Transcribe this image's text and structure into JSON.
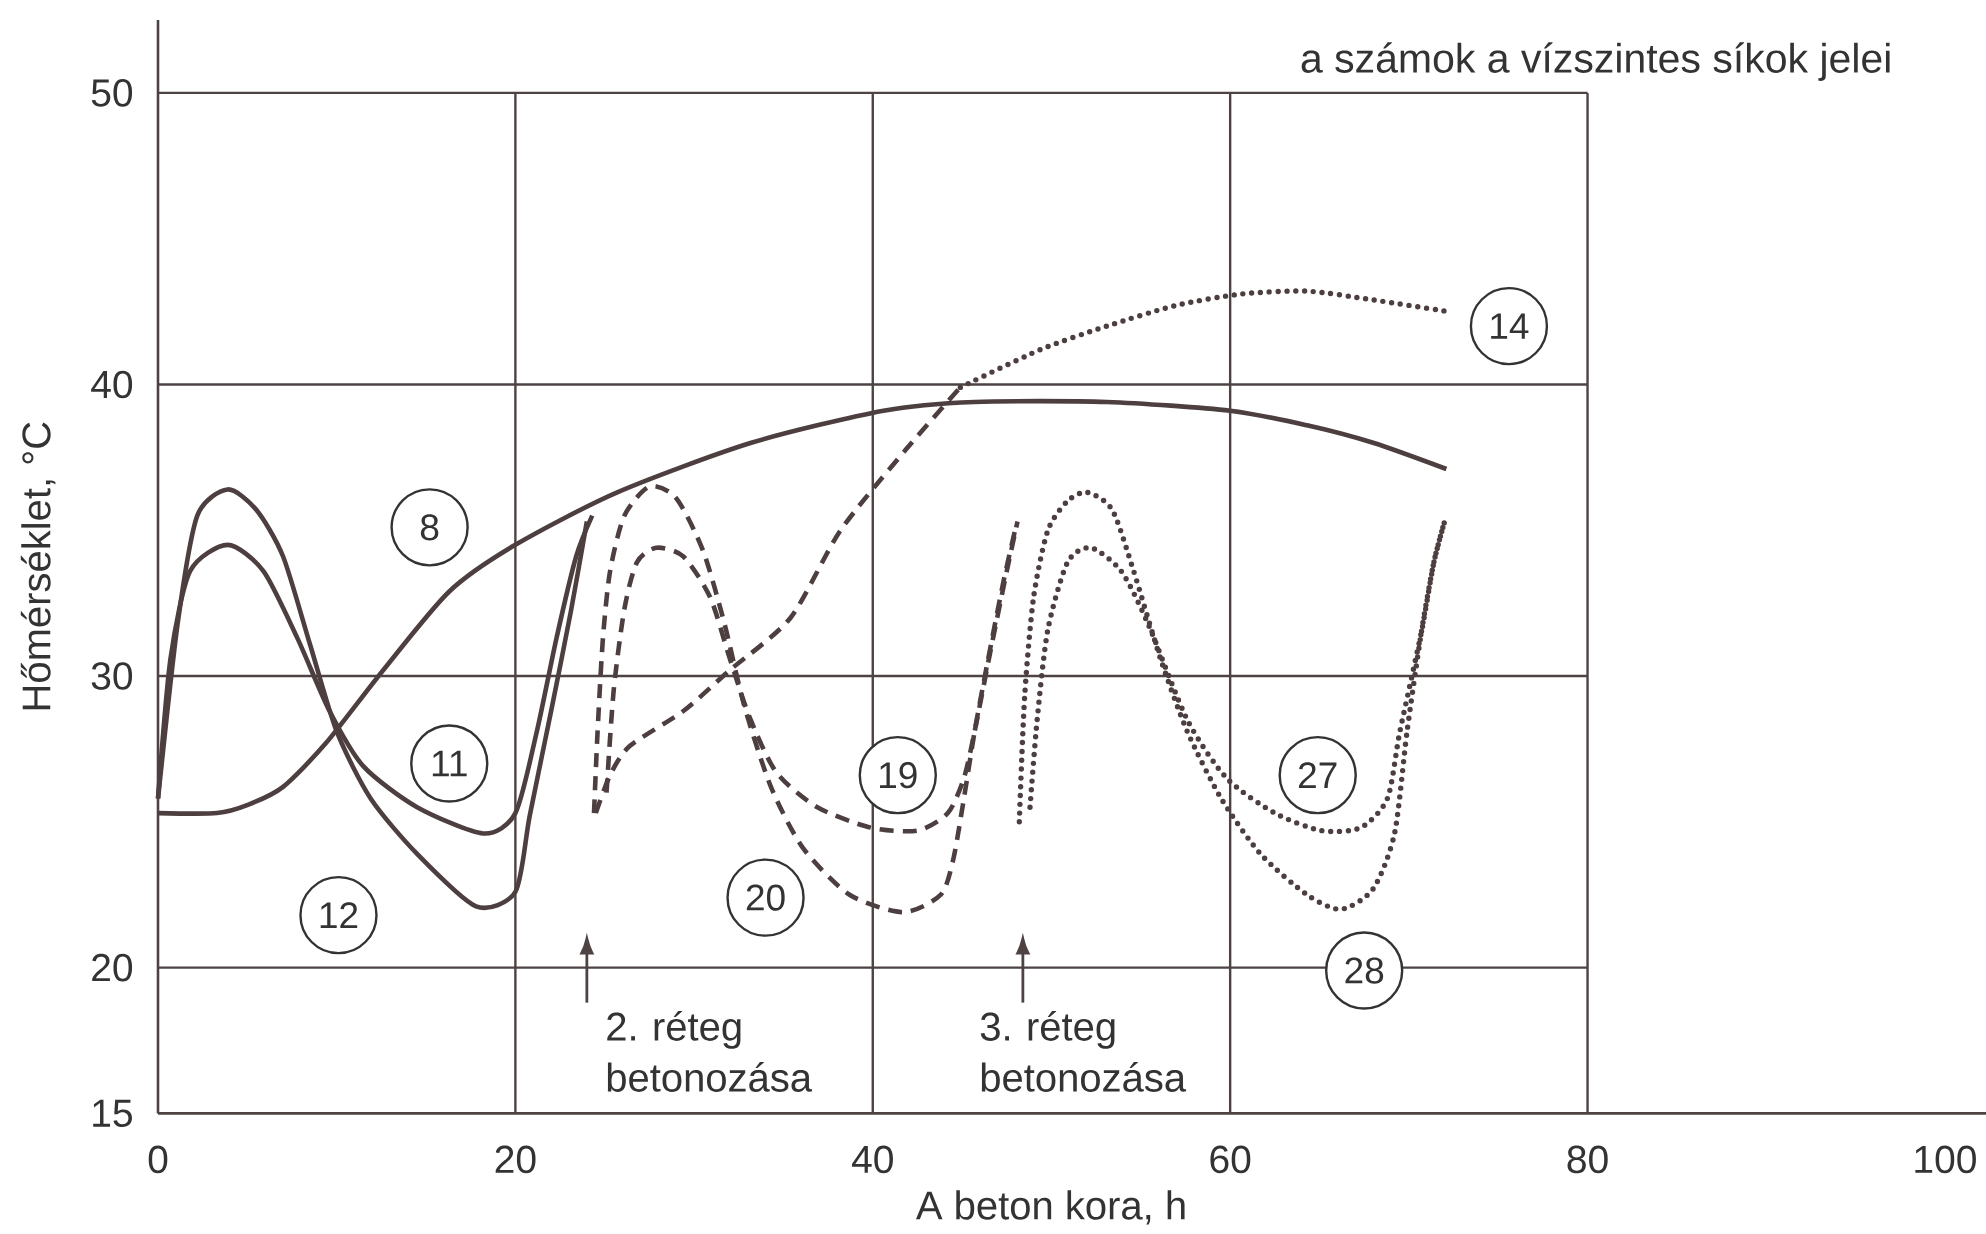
{
  "chart_data": {
    "type": "line",
    "xlabel": "A beton kora, h",
    "ylabel": "Hőmérséklet, °C",
    "xlim": [
      0,
      102.3
    ],
    "ylim": [
      15,
      52.5
    ],
    "xticks": [
      0,
      20,
      40,
      60,
      80,
      100
    ],
    "yticks": [
      15,
      20,
      30,
      40,
      50
    ],
    "grid": true,
    "annotations": [
      "a számok a vízszintes síkok jelei",
      "2. réteg betonozása",
      "3. réteg betonozása"
    ],
    "series": [
      {
        "name": "8",
        "color": "#4d3f40",
        "line_style": "solid",
        "x": [
          0,
          3.3,
          5.1,
          7.0,
          9.4,
          12.6,
          16.3,
          20,
          25.7,
          33.2,
          40.6,
          45.7,
          53.1,
          60,
          64.3,
          68.0,
          72.1
        ],
        "values": [
          25.3,
          25.3,
          25.6,
          26.2,
          27.7,
          30.2,
          32.9,
          34.5,
          36.3,
          38.0,
          39.1,
          39.4,
          39.4,
          39.1,
          38.6,
          38.0,
          37.1
        ]
      },
      {
        "name": "11",
        "color": "#4d3f40",
        "line_style": "solid",
        "x": [
          0,
          0.7,
          1.8,
          3.9,
          5.9,
          7.8,
          9.6,
          11.5,
          14.5,
          18.2,
          20,
          21.2,
          22.3,
          23.4,
          24.3
        ],
        "values": [
          25.8,
          30.6,
          33.6,
          34.5,
          33.6,
          31.3,
          28.8,
          26.9,
          25.5,
          24.6,
          25.3,
          28.1,
          31.3,
          34.1,
          35.5
        ]
      },
      {
        "name": "12",
        "color": "#4d3f40",
        "line_style": "solid",
        "x": [
          0,
          1.1,
          2.2,
          3.9,
          5.5,
          7.0,
          8.5,
          10.0,
          11.9,
          14.5,
          17.8,
          20,
          20.8,
          22.0,
          23.1,
          24.0
        ],
        "values": [
          25.8,
          31.8,
          35.5,
          36.4,
          35.7,
          34.1,
          31.1,
          28.1,
          25.8,
          23.9,
          22.1,
          22.6,
          25.2,
          28.8,
          32.2,
          35.3
        ]
      },
      {
        "color": "#4d3f40",
        "line_style": "dashed",
        "x": [
          24.5,
          25.3,
          26.4,
          29.4,
          32.0,
          35.4,
          38.2,
          41.9,
          44.9
        ],
        "values": [
          25.3,
          26.6,
          27.6,
          28.8,
          30.2,
          32.0,
          35.0,
          37.8,
          39.9
        ]
      },
      {
        "name": "14",
        "color": "#4d3f40",
        "line_style": "dotted",
        "x": [
          44.9,
          49.4,
          53.1,
          56.9,
          60.6,
          64.3,
          68.0,
          72.2
        ],
        "values": [
          39.9,
          41.2,
          42.0,
          42.7,
          43.1,
          43.2,
          42.9,
          42.5
        ]
      },
      {
        "name": "19",
        "color": "#4d3f40",
        "line_style": "dashed",
        "x": [
          25.1,
          25.5,
          26.1,
          26.8,
          27.9,
          29.4,
          30.9,
          32.0,
          33.1,
          34.6,
          36.9,
          39.9,
          42.5,
          44.2,
          45.1,
          45.7,
          46.6,
          47.5,
          48.1
        ],
        "values": [
          26.0,
          29.5,
          32.3,
          33.9,
          34.4,
          34.1,
          32.7,
          30.6,
          28.6,
          26.7,
          25.5,
          24.8,
          24.7,
          25.3,
          26.5,
          28.1,
          30.9,
          33.6,
          35.3
        ]
      },
      {
        "name": "20",
        "color": "#4d3f40",
        "line_style": "dashed",
        "x": [
          24.4,
          24.6,
          24.9,
          25.3,
          26.1,
          27.5,
          29.0,
          30.5,
          31.7,
          32.8,
          34.3,
          36.1,
          38.7,
          41.7,
          43.8,
          44.5,
          45.1,
          45.7,
          46.4,
          47.3,
          48.0
        ],
        "values": [
          25.3,
          28.1,
          31.3,
          33.6,
          35.5,
          36.5,
          36.1,
          34.3,
          31.8,
          29.0,
          26.2,
          24.1,
          22.5,
          21.9,
          22.5,
          23.7,
          25.8,
          28.1,
          30.4,
          33.2,
          35.1
        ]
      },
      {
        "name": "27",
        "color": "#4d3f40",
        "line_style": "dotted",
        "x": [
          48.8,
          49.2,
          49.8,
          50.9,
          52.2,
          53.9,
          55.4,
          57.6,
          59.8,
          62.5,
          65.1,
          67.3,
          68.8,
          69.5,
          70.7,
          71.4,
          72.0
        ],
        "values": [
          25.5,
          28.5,
          31.6,
          33.9,
          34.4,
          33.6,
          31.8,
          28.5,
          26.5,
          25.3,
          24.7,
          24.8,
          25.8,
          28.1,
          31.5,
          33.9,
          35.3
        ]
      },
      {
        "name": "28",
        "color": "#4d3f40",
        "line_style": "dotted",
        "x": [
          48.2,
          48.5,
          49.0,
          49.8,
          50.9,
          52.0,
          53.4,
          54.6,
          56.1,
          57.6,
          59.5,
          61.7,
          64.3,
          66.2,
          68.0,
          69.2,
          69.9,
          70.7,
          71.4,
          72.0
        ],
        "values": [
          25.0,
          29.3,
          32.7,
          35.0,
          36.0,
          36.3,
          35.7,
          33.6,
          30.6,
          28.1,
          25.8,
          23.9,
          22.5,
          22.0,
          22.7,
          24.6,
          28.1,
          31.5,
          33.9,
          35.3
        ]
      }
    ]
  }
}
